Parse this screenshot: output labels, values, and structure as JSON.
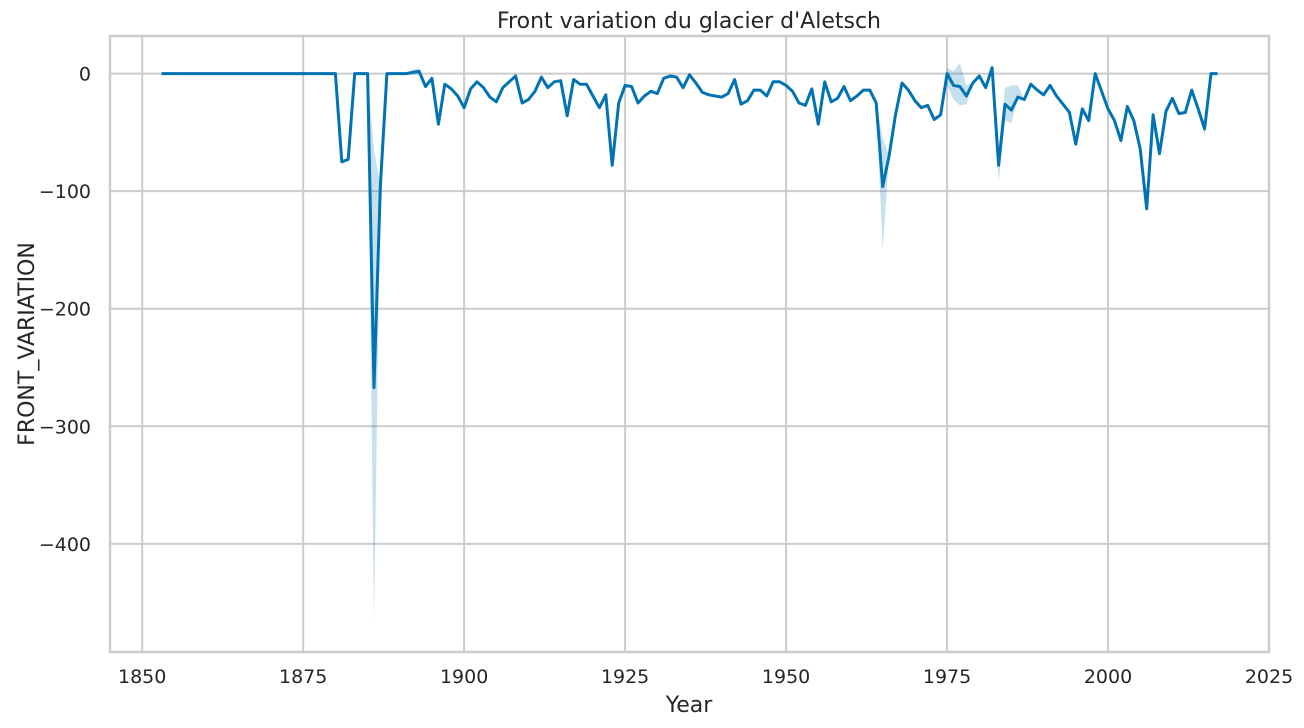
{
  "chart_data": {
    "type": "line",
    "title": "Front variation du glacier d'Aletsch",
    "xlabel": "Year",
    "ylabel": "FRONT_VARIATION",
    "xlim": [
      1845,
      2025
    ],
    "ylim": [
      -492,
      32
    ],
    "xticks": [
      1850,
      1875,
      1900,
      1925,
      1950,
      1975,
      2000,
      2025
    ],
    "yticks": [
      0,
      -100,
      -200,
      -300,
      -400
    ],
    "xtick_labels": [
      "1850",
      "1875",
      "1900",
      "1925",
      "1950",
      "1975",
      "2000",
      "2025"
    ],
    "ytick_labels": [
      "0",
      "−100",
      "−200",
      "−300",
      "−400"
    ],
    "grid": true,
    "color": "#0173b2",
    "series": [
      {
        "x": [
          1853,
          1855,
          1860,
          1865,
          1870,
          1875,
          1880,
          1881,
          1882,
          1883,
          1884,
          1885,
          1886,
          1887,
          1888,
          1889,
          1890,
          1891,
          1892,
          1893,
          1894,
          1895,
          1896,
          1897,
          1898,
          1899,
          1900,
          1901,
          1902,
          1903,
          1904,
          1905,
          1906,
          1907,
          1908,
          1909,
          1910,
          1911,
          1912,
          1913,
          1914,
          1915,
          1916,
          1917,
          1918,
          1919,
          1920,
          1921,
          1922,
          1923,
          1924,
          1925,
          1926,
          1927,
          1928,
          1929,
          1930,
          1931,
          1932,
          1933,
          1934,
          1935,
          1936,
          1937,
          1938,
          1939,
          1940,
          1941,
          1942,
          1943,
          1944,
          1945,
          1946,
          1947,
          1948,
          1949,
          1950,
          1951,
          1952,
          1953,
          1954,
          1955,
          1956,
          1957,
          1958,
          1959,
          1960,
          1961,
          1962,
          1963,
          1964,
          1965,
          1966,
          1967,
          1968,
          1969,
          1970,
          1971,
          1972,
          1973,
          1974,
          1975,
          1976,
          1977,
          1978,
          1979,
          1980,
          1981,
          1982,
          1983,
          1984,
          1985,
          1986,
          1987,
          1988,
          1989,
          1990,
          1991,
          1992,
          1993,
          1994,
          1995,
          1996,
          1997,
          1998,
          1999,
          2000,
          2001,
          2002,
          2003,
          2004,
          2005,
          2006,
          2007,
          2008,
          2009,
          2010,
          2011,
          2012,
          2013,
          2014,
          2015,
          2016,
          2017
        ],
        "values": [
          0,
          0,
          0,
          0,
          0,
          0,
          0,
          -75,
          -73,
          0,
          0,
          0,
          -267,
          -95,
          0,
          0,
          0,
          0,
          1,
          2,
          -11,
          -4,
          -43,
          -9,
          -13,
          -19,
          -29,
          -13,
          -7,
          -12,
          -20,
          -24,
          -12,
          -7,
          -2,
          -25,
          -22,
          -15,
          -3,
          -12,
          -7,
          -6,
          -36,
          -5,
          -9,
          -9,
          -19,
          -29,
          -18,
          -78,
          -25,
          -10,
          -11,
          -25,
          -19,
          -15,
          -17,
          -4,
          -2,
          -3,
          -12,
          -1,
          -8,
          -16,
          -18,
          -19,
          -20,
          -17,
          -5,
          -26,
          -23,
          -14,
          -14,
          -19,
          -7,
          -7,
          -10,
          -15,
          -25,
          -27,
          -13,
          -43,
          -7,
          -24,
          -21,
          -11,
          -23,
          -19,
          -14,
          -14,
          -25,
          -96,
          -70,
          -35,
          -8,
          -14,
          -23,
          -29,
          -27,
          -39,
          -35,
          0,
          -10,
          -11,
          -19,
          -8,
          -2,
          -12,
          5,
          -78,
          -26,
          -31,
          -20,
          -22,
          -9,
          -14,
          -18,
          -10,
          -19,
          -26,
          -33,
          -60,
          -30,
          -40,
          0,
          -15,
          -30,
          -40,
          -57,
          -28,
          -40,
          -64,
          -115,
          -35,
          -68,
          -32,
          -21,
          -34,
          -33,
          -14,
          -30,
          -47,
          0,
          0
        ],
        "lower": [
          0,
          0,
          0,
          0,
          0,
          0,
          0,
          -75,
          -73,
          0,
          0,
          0,
          -468,
          -95,
          0,
          0,
          0,
          0,
          -1,
          -1,
          -11,
          -4,
          -43,
          -9,
          -13,
          -19,
          -29,
          -13,
          -7,
          -12,
          -20,
          -24,
          -12,
          -7,
          -2,
          -25,
          -22,
          -15,
          -3,
          -12,
          -7,
          -6,
          -36,
          -5,
          -9,
          -9,
          -19,
          -29,
          -18,
          -78,
          -25,
          -10,
          -11,
          -25,
          -19,
          -15,
          -17,
          -4,
          -2,
          -3,
          -12,
          -1,
          -8,
          -16,
          -18,
          -19,
          -20,
          -17,
          -5,
          -26,
          -23,
          -14,
          -14,
          -19,
          -7,
          -7,
          -10,
          -15,
          -25,
          -27,
          -13,
          -43,
          -7,
          -24,
          -21,
          -11,
          -23,
          -19,
          -14,
          -14,
          -25,
          -150,
          -70,
          -35,
          -8,
          -14,
          -23,
          -29,
          -27,
          -40,
          -35,
          -10,
          -22,
          -27,
          -26,
          -8,
          -2,
          -12,
          3,
          -92,
          -40,
          -42,
          -20,
          -22,
          -9,
          -14,
          -18,
          -10,
          -19,
          -26,
          -33,
          -60,
          -30,
          -40,
          0,
          -15,
          -30,
          -40,
          -57,
          -28,
          -40,
          -64,
          -115,
          -35,
          -68,
          -32,
          -21,
          -34,
          -33,
          -14,
          -30,
          -53,
          0,
          0
        ],
        "upper": [
          0,
          0,
          0,
          0,
          0,
          0,
          0,
          -75,
          -73,
          0,
          0,
          0,
          -65,
          -95,
          0,
          0,
          0,
          0,
          3,
          5,
          -11,
          -4,
          -43,
          -9,
          -13,
          -19,
          -29,
          -13,
          -7,
          -12,
          -20,
          -24,
          -12,
          -7,
          -2,
          -25,
          -22,
          -15,
          -3,
          -12,
          -7,
          -6,
          -36,
          -5,
          -9,
          -9,
          -19,
          -29,
          -18,
          -78,
          -25,
          -10,
          -11,
          -25,
          -19,
          -15,
          -17,
          -4,
          -2,
          -3,
          -12,
          -1,
          -8,
          -16,
          -18,
          -19,
          -20,
          -17,
          -5,
          -26,
          -23,
          -14,
          -14,
          -19,
          -7,
          -7,
          -10,
          -15,
          -25,
          -27,
          -13,
          -43,
          -7,
          -24,
          -21,
          -11,
          -23,
          -19,
          -14,
          -14,
          -25,
          -55,
          -70,
          -35,
          -8,
          -14,
          -23,
          -29,
          -27,
          -38,
          -35,
          5,
          2,
          9,
          -10,
          -8,
          -2,
          -12,
          7,
          -64,
          -12,
          -10,
          -10,
          -22,
          -9,
          -14,
          -18,
          -10,
          -19,
          -26,
          -33,
          -60,
          -30,
          -40,
          0,
          -15,
          -30,
          -40,
          -57,
          -28,
          -40,
          -64,
          -115,
          -35,
          -68,
          -32,
          -21,
          -34,
          -33,
          -14,
          -30,
          -41,
          0,
          0
        ]
      }
    ]
  }
}
